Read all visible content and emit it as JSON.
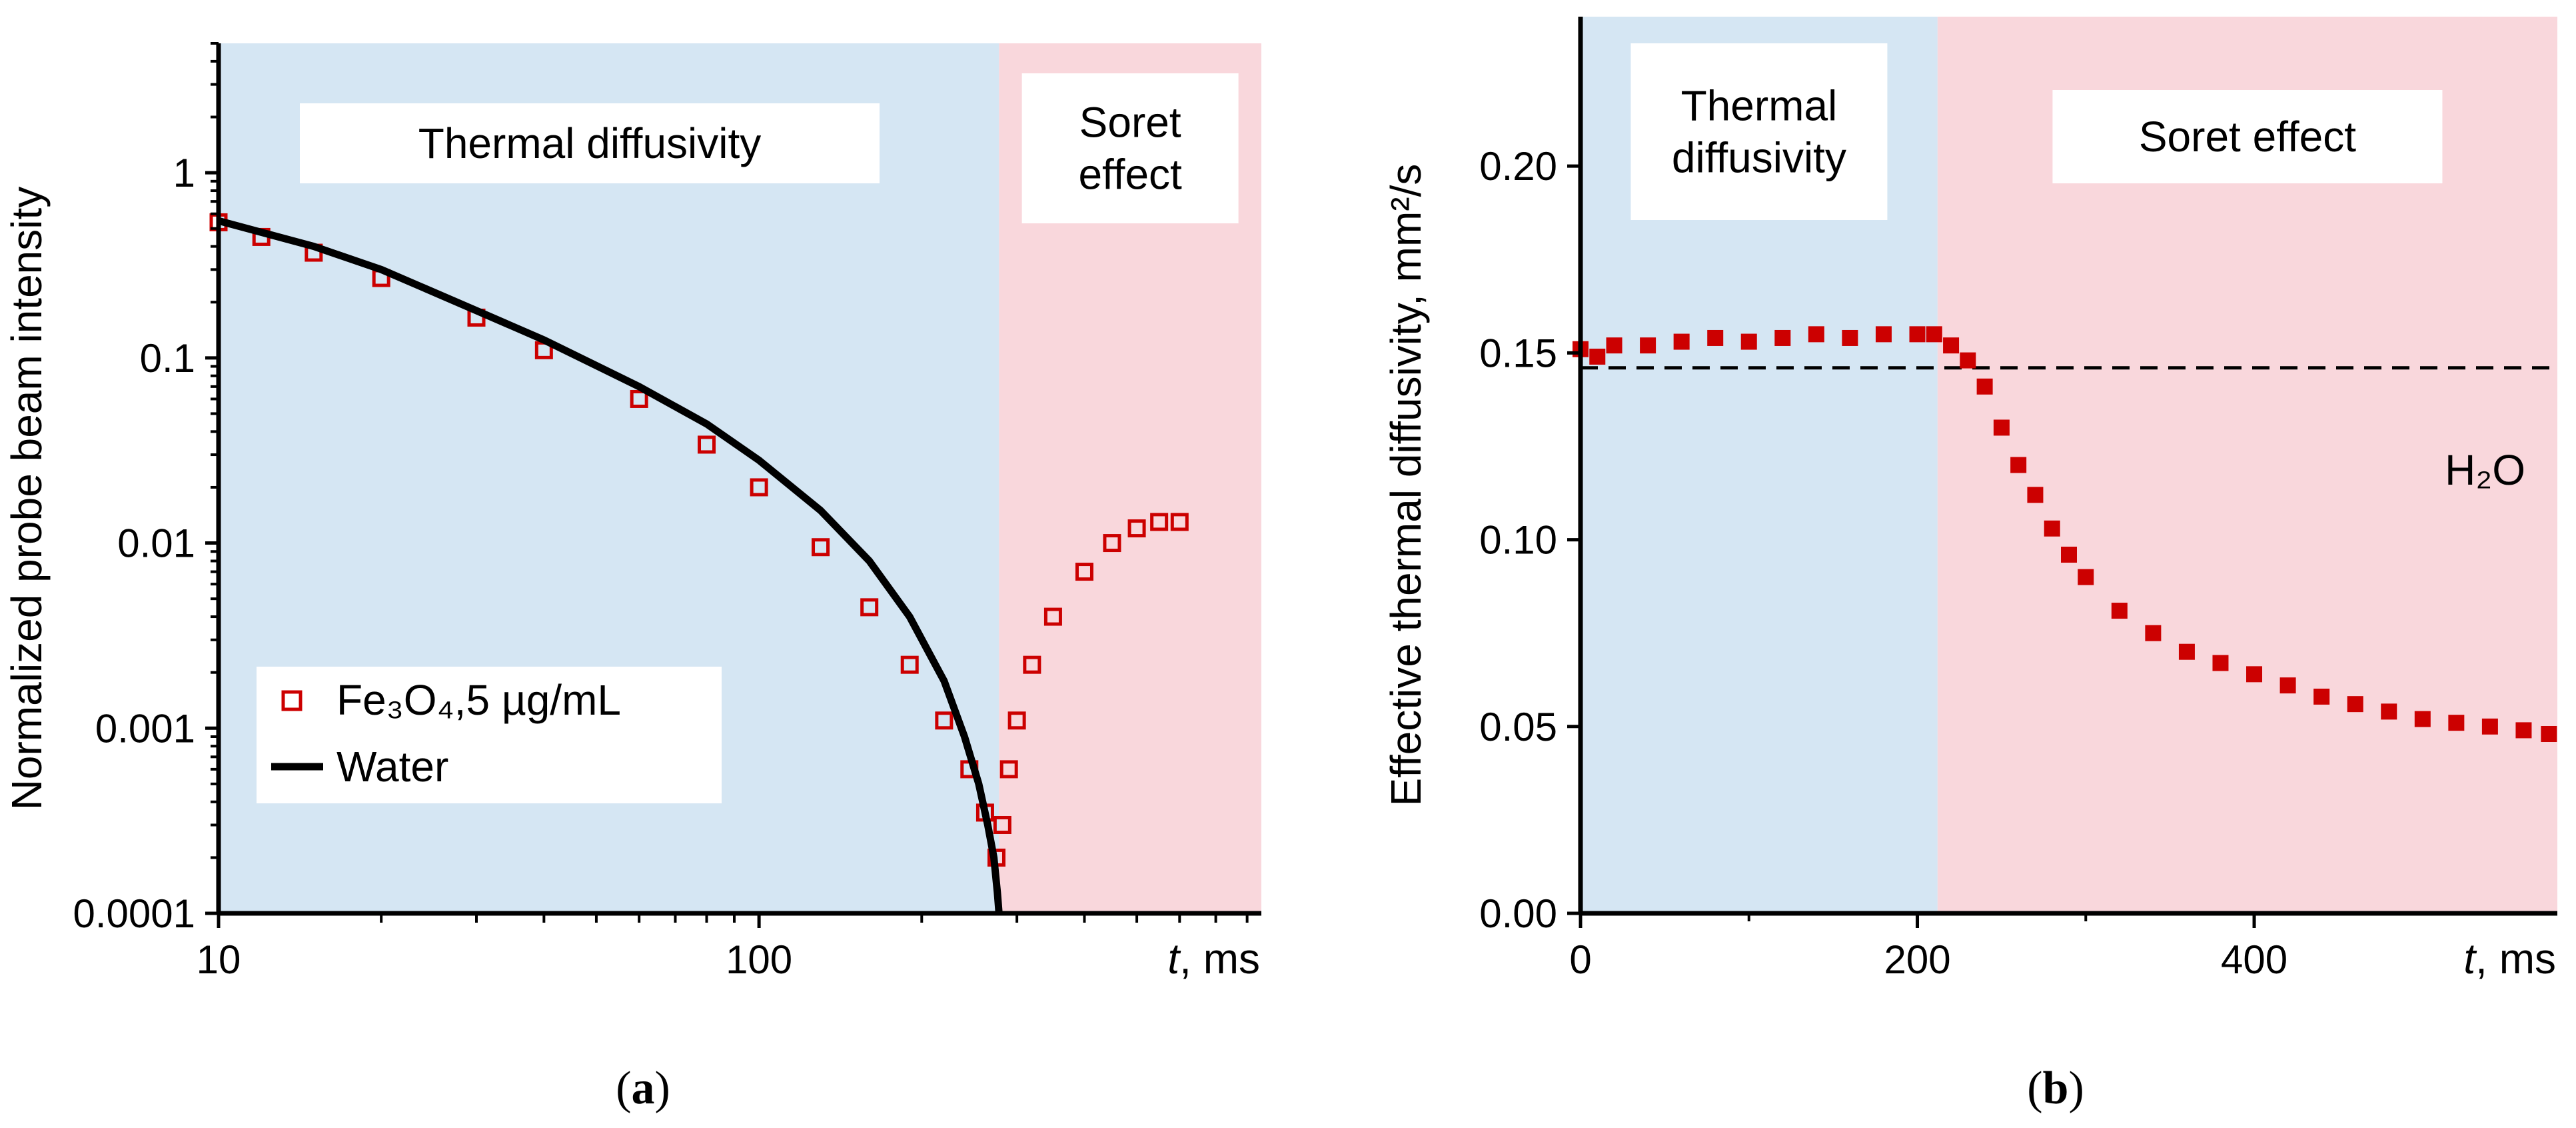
{
  "chart_data": [
    {
      "panel": "(a)",
      "caption_letter": "a",
      "type": "scatter",
      "xscale": "log",
      "yscale": "log",
      "xlim": [
        10,
        850
      ],
      "ylim": [
        0.0001,
        5
      ],
      "xticks": [
        10,
        100
      ],
      "xtick_labels": [
        "10",
        "100"
      ],
      "yticks": [
        0.0001,
        0.001,
        0.01,
        0.1,
        1
      ],
      "ytick_labels": [
        "0.0001",
        "0.001",
        "0.01",
        "0.1",
        "1"
      ],
      "xlabel_italic": "t",
      "xlabel_rest": ", ms",
      "ylabel": "Normalized probe beam intensity",
      "regions": [
        {
          "label_lines": [
            "Thermal diffusivity"
          ],
          "x_start": 10,
          "x_end": 278,
          "color": "#d5e6f3"
        },
        {
          "label_lines": [
            "Soret",
            "effect"
          ],
          "x_start": 278,
          "x_end": 850,
          "color": "#f9d7dc"
        }
      ],
      "legend": {
        "position": "bottom-left",
        "entries": [
          {
            "name": "Fe₃O₄,5 µg/mL",
            "style": "open-square",
            "color": "#cc0000"
          },
          {
            "name": "Water",
            "style": "line",
            "color": "#000000"
          }
        ]
      },
      "series": [
        {
          "name": "Fe₃O₄,5 µg/mL",
          "style": "open-square",
          "color": "#cc0000",
          "x": [
            10,
            12,
            15,
            20,
            30,
            40,
            60,
            80,
            100,
            130,
            160,
            190,
            220,
            245,
            262,
            275,
            282,
            290,
            300,
            320,
            350,
            400,
            450,
            500,
            550,
            600
          ],
          "y": [
            0.54,
            0.45,
            0.37,
            0.27,
            0.165,
            0.11,
            0.06,
            0.034,
            0.02,
            0.0095,
            0.0045,
            0.0022,
            0.0011,
            0.0006,
            0.00035,
            0.0002,
            0.0003,
            0.0006,
            0.0011,
            0.0022,
            0.004,
            0.007,
            0.01,
            0.012,
            0.013,
            0.013
          ]
        },
        {
          "name": "Water",
          "style": "line",
          "color": "#000000",
          "x": [
            10,
            15,
            20,
            30,
            40,
            60,
            80,
            100,
            130,
            160,
            190,
            220,
            240,
            255,
            265,
            272,
            276,
            278
          ],
          "y": [
            0.55,
            0.4,
            0.3,
            0.18,
            0.125,
            0.07,
            0.044,
            0.028,
            0.015,
            0.008,
            0.004,
            0.0018,
            0.0009,
            0.0005,
            0.0003,
            0.0002,
            0.00013,
            0.0001
          ]
        }
      ]
    },
    {
      "panel": "(b)",
      "caption_letter": "b",
      "type": "scatter",
      "xscale": "linear",
      "yscale": "linear",
      "xlim": [
        0,
        580
      ],
      "ylim": [
        0,
        0.24
      ],
      "xticks": [
        0,
        200,
        400
      ],
      "xtick_labels": [
        "0",
        "200",
        "400"
      ],
      "yticks": [
        0,
        0.05,
        0.1,
        0.15,
        0.2
      ],
      "ytick_labels": [
        "0.00",
        "0.05",
        "0.10",
        "0.15",
        "0.20"
      ],
      "xlabel_italic": "t",
      "xlabel_rest": ", ms",
      "ylabel": "Effective thermal diffusivity, mm²/s",
      "regions": [
        {
          "label_lines": [
            "Thermal",
            "diffusivity"
          ],
          "x_start": 0,
          "x_end": 212,
          "color": "#d5e6f3"
        },
        {
          "label_lines": [
            "Soret effect"
          ],
          "x_start": 212,
          "x_end": 580,
          "color": "#f9d7dc"
        }
      ],
      "reference_line": {
        "label": "H₂O",
        "y": 0.146,
        "style": "dashed"
      },
      "series": [
        {
          "name": "Effective thermal diffusivity",
          "style": "filled-square",
          "color": "#cc0000",
          "x": [
            0,
            10,
            20,
            40,
            60,
            80,
            100,
            120,
            140,
            160,
            180,
            200,
            210,
            220,
            230,
            240,
            250,
            260,
            270,
            280,
            290,
            300,
            320,
            340,
            360,
            380,
            400,
            420,
            440,
            460,
            480,
            500,
            520,
            540,
            560,
            575
          ],
          "y": [
            0.151,
            0.149,
            0.152,
            0.152,
            0.153,
            0.154,
            0.153,
            0.154,
            0.155,
            0.154,
            0.155,
            0.155,
            0.155,
            0.152,
            0.148,
            0.141,
            0.13,
            0.12,
            0.112,
            0.103,
            0.096,
            0.09,
            0.081,
            0.075,
            0.07,
            0.067,
            0.064,
            0.061,
            0.058,
            0.056,
            0.054,
            0.052,
            0.051,
            0.05,
            0.049,
            0.048
          ]
        }
      ]
    }
  ]
}
